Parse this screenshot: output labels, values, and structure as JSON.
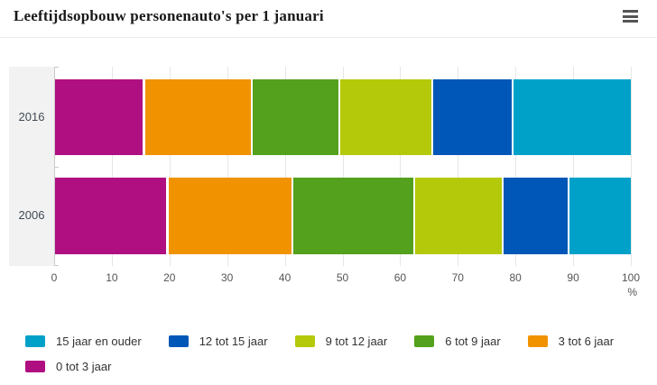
{
  "header": {
    "title": "Leeftijdsopbouw personenauto's per 1 januari",
    "menu_icon": "hamburger-menu-icon"
  },
  "chart_data": {
    "type": "bar",
    "orientation": "horizontal",
    "stacked": true,
    "title": "Leeftijdsopbouw personenauto's per 1 januari",
    "categories": [
      "2016",
      "2006"
    ],
    "series": [
      {
        "name": "0 tot 3 jaar",
        "color": "#b00f81",
        "values": [
          15.6,
          19.7
        ]
      },
      {
        "name": "3 tot 6 jaar",
        "color": "#f19300",
        "values": [
          18.6,
          21.6
        ]
      },
      {
        "name": "6 tot 9 jaar",
        "color": "#53a11d",
        "values": [
          15.2,
          21.1
        ]
      },
      {
        "name": "9 tot 12 jaar",
        "color": "#b4c90a",
        "values": [
          16.1,
          15.4
        ]
      },
      {
        "name": "12 tot 15 jaar",
        "color": "#0157b7",
        "values": [
          14.0,
          11.4
        ]
      },
      {
        "name": "15 jaar en ouder",
        "color": "#00a1c9",
        "values": [
          20.5,
          10.8
        ]
      }
    ],
    "legend_order": [
      "15 jaar en ouder",
      "12 tot 15 jaar",
      "9 tot 12 jaar",
      "6 tot 9 jaar",
      "3 tot 6 jaar",
      "0 tot 3 jaar"
    ],
    "legend_position": "bottom",
    "xlabel": "%",
    "x_ticks": [
      0,
      10,
      20,
      30,
      40,
      50,
      60,
      70,
      80,
      90,
      100
    ],
    "xlim": [
      0,
      100
    ],
    "grid": true
  }
}
